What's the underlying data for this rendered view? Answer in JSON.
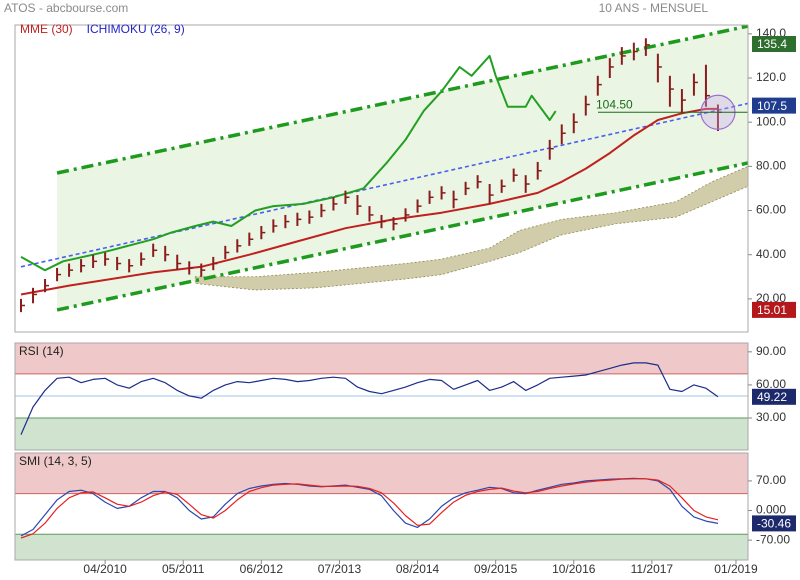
{
  "chart_data": [
    {
      "type": "ohlc",
      "title": "ATOS - abcbourse.com",
      "subtitle": "10 ANS - MENSUEL",
      "xlim": [
        "01/2009",
        "03/2019"
      ],
      "ylim": [
        5,
        144
      ],
      "yticks": [
        {
          "value": 140,
          "label": "140.0"
        },
        {
          "value": 120,
          "label": "120.0"
        },
        {
          "value": 100,
          "label": "100.0"
        },
        {
          "value": 80,
          "label": "80.00"
        },
        {
          "value": 60,
          "label": "60.00"
        },
        {
          "value": 40,
          "label": "40.00"
        },
        {
          "value": 20,
          "label": "20.00"
        }
      ],
      "x": [
        "02/2009",
        "04/2009",
        "06/2009",
        "08/2009",
        "10/2009",
        "12/2009",
        "02/2010",
        "04/2010",
        "06/2010",
        "08/2010",
        "10/2010",
        "12/2010",
        "02/2011",
        "04/2011",
        "06/2011",
        "08/2011",
        "10/2011",
        "12/2011",
        "02/2012",
        "04/2012",
        "06/2012",
        "08/2012",
        "10/2012",
        "12/2012",
        "02/2013",
        "04/2013",
        "06/2013",
        "08/2013",
        "10/2013",
        "12/2013",
        "02/2014",
        "04/2014",
        "06/2014",
        "08/2014",
        "10/2014",
        "12/2014",
        "02/2015",
        "04/2015",
        "06/2015",
        "08/2015",
        "10/2015",
        "12/2015",
        "02/2016",
        "04/2016",
        "06/2016",
        "08/2016",
        "10/2016",
        "12/2016",
        "02/2017",
        "04/2017",
        "06/2017",
        "08/2017",
        "10/2017",
        "12/2017",
        "02/2018",
        "04/2018",
        "06/2018",
        "08/2018",
        "10/2018"
      ],
      "high": [
        20,
        25,
        29,
        34,
        36,
        38,
        40,
        41,
        39,
        38,
        41,
        45,
        44,
        40,
        37,
        36,
        39,
        44,
        47,
        50,
        53,
        56,
        58,
        59,
        60,
        63,
        66,
        69,
        67,
        62,
        58,
        57,
        61,
        65,
        69,
        71,
        69,
        73,
        76,
        72,
        74,
        79,
        76,
        82,
        92,
        99,
        104,
        112,
        121,
        129,
        134,
        136,
        138,
        131,
        121,
        115,
        122,
        126,
        108
      ],
      "low": [
        14,
        18,
        23,
        28,
        30,
        32,
        34,
        35,
        33,
        32,
        35,
        39,
        37,
        33,
        31,
        30,
        33,
        38,
        41,
        44,
        47,
        50,
        52,
        53,
        54,
        57,
        60,
        63,
        58,
        55,
        52,
        51,
        55,
        59,
        63,
        65,
        61,
        67,
        70,
        63,
        68,
        73,
        68,
        74,
        83,
        90,
        95,
        103,
        112,
        120,
        126,
        128,
        130,
        118,
        107,
        104,
        112,
        107,
        96
      ],
      "close": [
        17,
        22,
        26,
        31,
        33,
        35,
        37,
        38,
        36,
        35,
        38,
        42,
        40,
        36,
        34,
        33,
        36,
        41,
        44,
        47,
        50,
        53,
        55,
        56,
        57,
        60,
        63,
        66,
        62,
        58,
        55,
        54,
        58,
        62,
        66,
        68,
        65,
        70,
        73,
        67,
        71,
        76,
        72,
        78,
        88,
        95,
        100,
        108,
        117,
        125,
        130,
        132,
        135,
        125,
        115,
        110,
        118,
        112,
        104.5
      ],
      "color": "#8a1c1c",
      "series": [
        {
          "name": "MME (30)",
          "color": "#c0201e",
          "x": [
            "02/2009",
            "10/2009",
            "12/2010",
            "08/2011",
            "04/2012",
            "12/2012",
            "08/2013",
            "04/2014",
            "12/2014",
            "08/2015",
            "04/2016",
            "08/2016",
            "12/2016",
            "04/2017",
            "08/2017",
            "12/2017",
            "04/2018",
            "08/2018",
            "10/2018"
          ],
          "values": [
            22,
            26,
            32,
            34.5,
            40,
            46,
            52,
            56,
            59,
            63,
            68,
            73,
            79,
            86,
            94,
            101,
            104,
            106,
            106
          ]
        },
        {
          "color": "#22a022",
          "x": [
            "02/2009",
            "06/2009",
            "09/2009",
            "02/2010",
            "05/2010",
            "12/2010",
            "03/2011",
            "07/2011",
            "10/2011",
            "01/2012",
            "05/2012",
            "08/2012",
            "01/2013",
            "06/2013",
            "11/2013",
            "03/2014",
            "06/2014",
            "09/2014",
            "12/2014",
            "03/2015",
            "05/2015",
            "08/2015",
            "09/2015",
            "11/2015",
            "02/2016",
            "03/2016",
            "06/2016",
            "07/2016"
          ],
          "values": [
            39,
            33,
            37,
            40,
            42,
            47,
            50,
            53,
            55,
            53,
            60,
            62,
            63,
            66,
            70,
            82,
            92,
            105,
            114,
            125,
            121,
            130,
            121,
            107,
            107,
            112,
            101,
            105
          ]
        }
      ],
      "cloud": {
        "name": "ICHIMOKU (26, 9)",
        "color": "#2424c8",
        "fill": "#c9c39b",
        "x": [
          "07/2011",
          "05/2012",
          "03/2013",
          "06/2014",
          "12/2014",
          "08/2015",
          "01/2016",
          "08/2016",
          "05/2017",
          "03/2018",
          "09/2018",
          "03/2019"
        ],
        "upper": [
          30,
          30,
          32,
          36,
          38,
          43,
          51,
          56,
          59,
          64,
          73,
          80
        ],
        "lower": [
          27,
          24,
          25,
          29,
          31,
          37,
          41,
          49,
          54,
          57,
          64,
          71
        ]
      },
      "trend_lines": [
        {
          "color": "#1e9a1e",
          "style": "dashdot",
          "x": [
            "08/2009",
            "03/2019"
          ],
          "values": [
            77,
            143.5
          ]
        },
        {
          "color": "#1e9a1e",
          "style": "dashdot",
          "x": [
            "08/2009",
            "03/2019"
          ],
          "values": [
            15,
            81.5
          ]
        },
        {
          "color": "#4a5ef0",
          "style": "dashed",
          "x": [
            "02/2009",
            "03/2019"
          ],
          "values": [
            34.5,
            108.5
          ]
        }
      ],
      "channel_fill": "#eaf5e3",
      "markers": [
        {
          "value": 135.4,
          "color": "#2e6e2e"
        },
        {
          "value": 107.5,
          "color": "#1f3c8f"
        },
        {
          "value": 15.01,
          "color": "#b3191b"
        }
      ],
      "annotation": {
        "value": 104.5,
        "label": "104.50",
        "color": "#1a6b1a"
      }
    },
    {
      "type": "line",
      "title": "RSI (14)",
      "xlim": [
        "01/2009",
        "03/2019"
      ],
      "ylim": [
        1,
        98
      ],
      "yticks": [
        {
          "value": 90,
          "label": "90.00"
        },
        {
          "value": 60,
          "label": "60.00"
        },
        {
          "value": 30,
          "label": "30.00"
        }
      ],
      "zones": [
        {
          "from": 70,
          "to": 98,
          "color": "#efc9c9",
          "line": "#c86464"
        },
        {
          "from": 1,
          "to": 30,
          "color": "#cfe3cf",
          "line": "#5e9a5e"
        }
      ],
      "hlines": [
        {
          "value": 50,
          "color": "#9cc8e8"
        }
      ],
      "series": [
        {
          "color": "#1c2c8c",
          "x": [
            "02/2009",
            "04/2009",
            "06/2009",
            "08/2009",
            "10/2009",
            "12/2009",
            "02/2010",
            "04/2010",
            "06/2010",
            "08/2010",
            "10/2010",
            "12/2010",
            "02/2011",
            "04/2011",
            "06/2011",
            "08/2011",
            "10/2011",
            "12/2011",
            "02/2012",
            "04/2012",
            "06/2012",
            "08/2012",
            "10/2012",
            "12/2012",
            "02/2013",
            "04/2013",
            "06/2013",
            "08/2013",
            "10/2013",
            "12/2013",
            "02/2014",
            "04/2014",
            "06/2014",
            "08/2014",
            "10/2014",
            "12/2014",
            "02/2015",
            "04/2015",
            "06/2015",
            "08/2015",
            "10/2015",
            "12/2015",
            "02/2016",
            "04/2016",
            "06/2016",
            "08/2016",
            "10/2016",
            "12/2016",
            "02/2017",
            "04/2017",
            "06/2017",
            "08/2017",
            "10/2017",
            "12/2017",
            "02/2018",
            "04/2018",
            "06/2018",
            "08/2018",
            "10/2018"
          ],
          "values": [
            15,
            40,
            55,
            66,
            67,
            62,
            65,
            66,
            60,
            57,
            63,
            66,
            62,
            55,
            50,
            48,
            55,
            60,
            63,
            62,
            64,
            66,
            65,
            63,
            64,
            66,
            67,
            66,
            58,
            54,
            52,
            55,
            58,
            62,
            65,
            64,
            56,
            60,
            64,
            55,
            58,
            63,
            55,
            60,
            66,
            67,
            68,
            69,
            72,
            75,
            78,
            80,
            80,
            78,
            56,
            54,
            60,
            57,
            49.22
          ]
        }
      ],
      "markers": [
        {
          "value": 49.22,
          "color": "#1c2a6c"
        }
      ]
    },
    {
      "type": "line",
      "title": "SMI (14, 3, 5)",
      "xlim": [
        "01/2009",
        "03/2019"
      ],
      "ylim": [
        -117,
        136
      ],
      "yticks": [
        {
          "value": 70,
          "label": "70.00"
        },
        {
          "value": 0,
          "label": "0.000"
        },
        {
          "value": -70,
          "label": "-70.00"
        }
      ],
      "zones": [
        {
          "from": 40,
          "to": 136,
          "color": "#efc9c9",
          "line": "#c86464"
        },
        {
          "from": -117,
          "to": -56,
          "color": "#cfe3cf",
          "line": "#5e9a5e"
        }
      ],
      "series": [
        {
          "color": "#2848b0",
          "x": [
            "02/2009",
            "04/2009",
            "06/2009",
            "08/2009",
            "10/2009",
            "12/2009",
            "02/2010",
            "04/2010",
            "06/2010",
            "08/2010",
            "10/2010",
            "12/2010",
            "02/2011",
            "04/2011",
            "06/2011",
            "08/2011",
            "10/2011",
            "12/2011",
            "02/2012",
            "04/2012",
            "06/2012",
            "08/2012",
            "10/2012",
            "12/2012",
            "02/2013",
            "04/2013",
            "06/2013",
            "08/2013",
            "10/2013",
            "12/2013",
            "02/2014",
            "04/2014",
            "06/2014",
            "08/2014",
            "10/2014",
            "12/2014",
            "02/2015",
            "04/2015",
            "06/2015",
            "08/2015",
            "10/2015",
            "12/2015",
            "02/2016",
            "04/2016",
            "06/2016",
            "08/2016",
            "10/2016",
            "12/2016",
            "02/2017",
            "04/2017",
            "06/2017",
            "08/2017",
            "10/2017",
            "12/2017",
            "02/2018",
            "04/2018",
            "06/2018",
            "08/2018",
            "10/2018"
          ],
          "values": [
            -60,
            -45,
            -10,
            25,
            45,
            48,
            40,
            20,
            5,
            10,
            30,
            45,
            45,
            30,
            0,
            -20,
            -15,
            15,
            40,
            52,
            58,
            62,
            64,
            62,
            58,
            56,
            58,
            60,
            55,
            50,
            35,
            0,
            -30,
            -40,
            -20,
            10,
            30,
            42,
            48,
            55,
            52,
            42,
            40,
            48,
            55,
            62,
            65,
            70,
            72,
            74,
            75,
            76,
            75,
            70,
            50,
            10,
            -15,
            -25,
            -30.46
          ]
        },
        {
          "color": "#e8201c",
          "x": [
            "02/2009",
            "04/2009",
            "06/2009",
            "08/2009",
            "10/2009",
            "12/2009",
            "02/2010",
            "04/2010",
            "06/2010",
            "08/2010",
            "10/2010",
            "12/2010",
            "02/2011",
            "04/2011",
            "06/2011",
            "08/2011",
            "10/2011",
            "12/2011",
            "02/2012",
            "04/2012",
            "06/2012",
            "08/2012",
            "10/2012",
            "12/2012",
            "02/2013",
            "04/2013",
            "06/2013",
            "08/2013",
            "10/2013",
            "12/2013",
            "02/2014",
            "04/2014",
            "06/2014",
            "08/2014",
            "10/2014",
            "12/2014",
            "02/2015",
            "04/2015",
            "06/2015",
            "08/2015",
            "10/2015",
            "12/2015",
            "02/2016",
            "04/2016",
            "06/2016",
            "08/2016",
            "10/2016",
            "12/2016",
            "02/2017",
            "04/2017",
            "06/2017",
            "08/2017",
            "10/2017",
            "12/2017",
            "02/2018",
            "04/2018",
            "06/2018",
            "08/2018",
            "10/2018"
          ],
          "values": [
            -65,
            -55,
            -30,
            5,
            30,
            42,
            44,
            30,
            15,
            10,
            20,
            35,
            44,
            38,
            15,
            -10,
            -18,
            0,
            25,
            45,
            54,
            60,
            62,
            63,
            60,
            57,
            57,
            58,
            57,
            52,
            42,
            18,
            -12,
            -35,
            -32,
            -5,
            20,
            36,
            45,
            50,
            53,
            46,
            42,
            45,
            52,
            58,
            63,
            67,
            70,
            72,
            74,
            75,
            75,
            72,
            58,
            30,
            0,
            -15,
            -22
          ]
        }
      ],
      "markers": [
        {
          "value": -30.46,
          "color": "#1c2a6c"
        }
      ],
      "xticks": [
        "04/2010",
        "05/2011",
        "06/2012",
        "07/2013",
        "08/2014",
        "09/2015",
        "10/2016",
        "11/2017",
        "01/2019"
      ]
    }
  ]
}
